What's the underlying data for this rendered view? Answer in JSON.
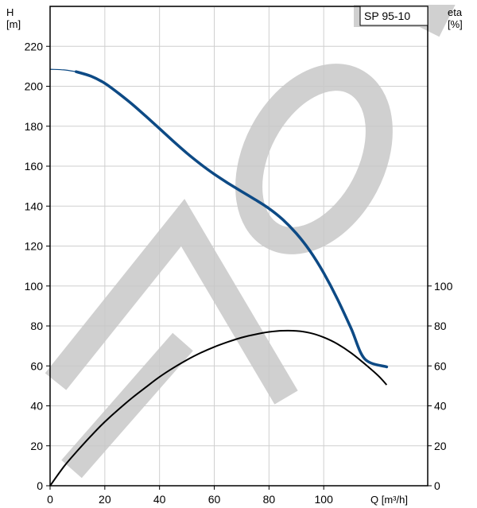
{
  "chart_data": {
    "type": "line",
    "title": "",
    "model_label": "SP 95-10",
    "left_axis": {
      "label_top": "H",
      "label_unit": "[m]",
      "ticks": [
        0,
        20,
        40,
        60,
        80,
        100,
        120,
        140,
        160,
        180,
        200,
        220
      ],
      "range": [
        0,
        240
      ]
    },
    "right_axis": {
      "label_top": "eta",
      "label_unit": "[%]",
      "ticks": [
        0,
        20,
        40,
        60,
        80,
        100
      ],
      "range": [
        0,
        240
      ]
    },
    "x_axis": {
      "label": "Q [m³/h]",
      "ticks": [
        0,
        20,
        40,
        60,
        80,
        100
      ],
      "range": [
        0,
        138
      ]
    },
    "grid": true,
    "watermark": "MO",
    "series": [
      {
        "id": "head",
        "axis": "left",
        "color": "#0d4a85",
        "points": [
          [
            0,
            208.5
          ],
          [
            5,
            208.2
          ],
          [
            9.5,
            207.3
          ],
          [
            15,
            205
          ],
          [
            20,
            201.5
          ],
          [
            25,
            196.5
          ],
          [
            30,
            191
          ],
          [
            35,
            185
          ],
          [
            40,
            178.8
          ],
          [
            45,
            172.5
          ],
          [
            50,
            166.5
          ],
          [
            55,
            161
          ],
          [
            60,
            156
          ],
          [
            65,
            151.5
          ],
          [
            70,
            147.3
          ],
          [
            75,
            143.2
          ],
          [
            80,
            138.8
          ],
          [
            85,
            133.3
          ],
          [
            90,
            126.3
          ],
          [
            95,
            117.5
          ],
          [
            100,
            106.5
          ],
          [
            105,
            93.5
          ],
          [
            110,
            78.8
          ],
          [
            115,
            63.5
          ],
          [
            123,
            59.5
          ]
        ]
      },
      {
        "id": "efficiency",
        "axis": "right",
        "color": "#000000",
        "points": [
          [
            0,
            0
          ],
          [
            5,
            9.5
          ],
          [
            10,
            17.5
          ],
          [
            15,
            25
          ],
          [
            20,
            32
          ],
          [
            25,
            38.2
          ],
          [
            30,
            44
          ],
          [
            35,
            49.3
          ],
          [
            40,
            54.5
          ],
          [
            45,
            59
          ],
          [
            50,
            63
          ],
          [
            55,
            66.5
          ],
          [
            60,
            69.5
          ],
          [
            65,
            72
          ],
          [
            70,
            74.2
          ],
          [
            75,
            75.8
          ],
          [
            80,
            77
          ],
          [
            85,
            77.6
          ],
          [
            90,
            77.5
          ],
          [
            95,
            76.5
          ],
          [
            100,
            74.3
          ],
          [
            105,
            71
          ],
          [
            110,
            66.5
          ],
          [
            115,
            61
          ],
          [
            120,
            55
          ],
          [
            123,
            50.5
          ]
        ]
      }
    ]
  }
}
